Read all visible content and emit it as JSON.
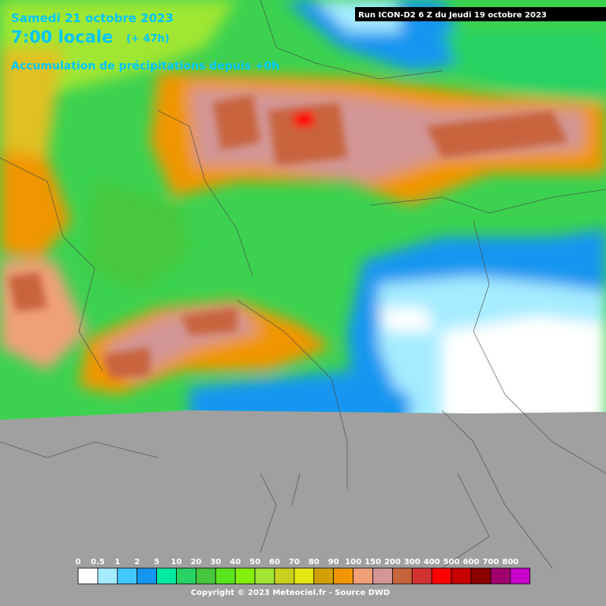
{
  "header": {
    "date": "Samedi 21 octobre 2023",
    "time": "7:00 locale",
    "offset": "(+ 47h)",
    "product": "Accumulation de précipitations depuis +0h",
    "run": "Run ICON-D2 6 Z du Jeudi 19 octobre 2023"
  },
  "legend": {
    "labels": [
      0,
      0.5,
      1,
      2,
      5,
      10,
      20,
      30,
      40,
      50,
      60,
      70,
      80,
      90,
      100,
      150,
      200,
      300,
      400,
      500,
      600,
      700,
      800
    ],
    "colors": [
      "#ffffff",
      "#a6ecff",
      "#41c8ff",
      "#1496f0",
      "#00eaa0",
      "#28d264",
      "#46c83c",
      "#5ae61e",
      "#82f00a",
      "#a0e632",
      "#c8d21e",
      "#e6e614",
      "#d2a000",
      "#f09600",
      "#f0a078",
      "#d29696",
      "#c8643c",
      "#d23232",
      "#ff0000",
      "#c80000",
      "#8c0000",
      "#a0006e",
      "#c800c8"
    ]
  },
  "footer": {
    "copyright": "Copyright © 2023 Meteociel.fr - Source DWD"
  }
}
